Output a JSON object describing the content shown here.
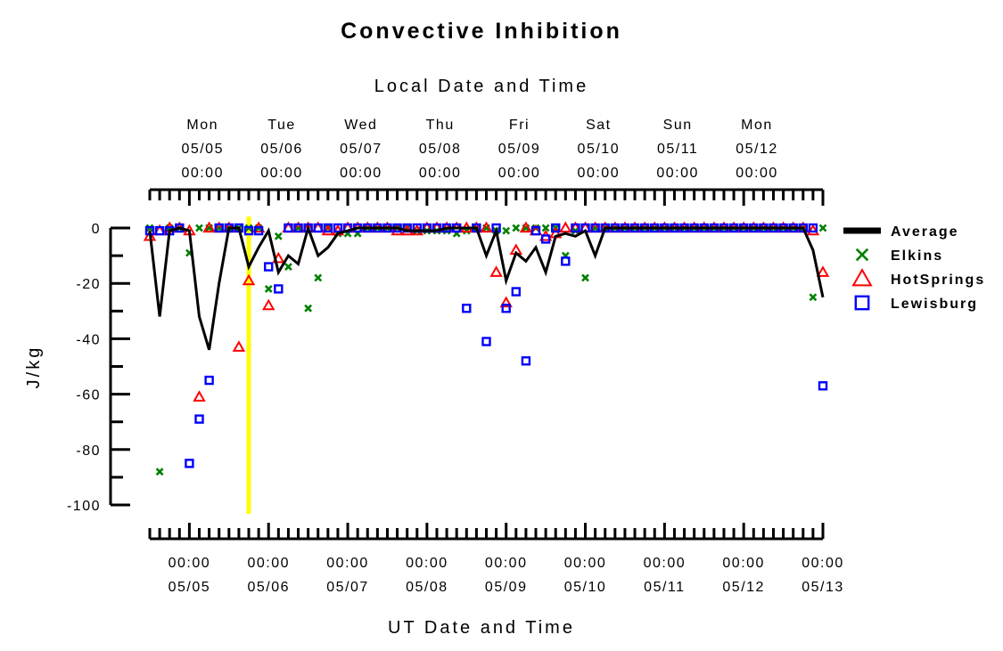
{
  "chart_data": {
    "type": "scatter",
    "title": "Convective Inhibition",
    "top_xlabel": "Local Date and Time",
    "xlabel": "UT Date and Time",
    "ylabel": "J/kg",
    "ylim": [
      -100,
      0
    ],
    "yticks": [
      0,
      -20,
      -40,
      -60,
      -80,
      -100
    ],
    "xlim": [
      "05/04 12:00",
      "05/13 00:00"
    ],
    "local_utc_offset_hours": -4,
    "top_ticks": [
      {
        "day": "Mon",
        "date": "05/05",
        "time": "00:00"
      },
      {
        "day": "Tue",
        "date": "05/06",
        "time": "00:00"
      },
      {
        "day": "Wed",
        "date": "05/07",
        "time": "00:00"
      },
      {
        "day": "Thu",
        "date": "05/08",
        "time": "00:00"
      },
      {
        "day": "Fri",
        "date": "05/09",
        "time": "00:00"
      },
      {
        "day": "Sat",
        "date": "05/10",
        "time": "00:00"
      },
      {
        "day": "Sun",
        "date": "05/11",
        "time": "00:00"
      },
      {
        "day": "Mon",
        "date": "05/12",
        "time": "00:00"
      }
    ],
    "bottom_ticks": [
      {
        "time": "00:00",
        "date": "05/05"
      },
      {
        "time": "00:00",
        "date": "05/06"
      },
      {
        "time": "00:00",
        "date": "05/07"
      },
      {
        "time": "00:00",
        "date": "05/08"
      },
      {
        "time": "00:00",
        "date": "05/09"
      },
      {
        "time": "00:00",
        "date": "05/10"
      },
      {
        "time": "00:00",
        "date": "05/11"
      },
      {
        "time": "00:00",
        "date": "05/12"
      },
      {
        "time": "00:00",
        "date": "05/13"
      }
    ],
    "current_time_marker": {
      "utc": "05/05 18:00",
      "color": "#ffff00"
    },
    "legend_position": "right",
    "series": [
      {
        "name": "Average",
        "type": "line",
        "color": "#000000",
        "x": [
          "05/04 12:00",
          "05/04 15:00",
          "05/04 18:00",
          "05/04 21:00",
          "05/05 00:00",
          "05/05 03:00",
          "05/05 06:00",
          "05/05 09:00",
          "05/05 12:00",
          "05/05 15:00",
          "05/05 18:00",
          "05/05 21:00",
          "05/06 00:00",
          "05/06 03:00",
          "05/06 06:00",
          "05/06 09:00",
          "05/06 12:00",
          "05/06 15:00",
          "05/06 18:00",
          "05/06 21:00",
          "05/07 00:00",
          "05/07 03:00",
          "05/07 06:00",
          "05/07 09:00",
          "05/07 12:00",
          "05/07 15:00",
          "05/07 18:00",
          "05/07 21:00",
          "05/08 00:00",
          "05/08 03:00",
          "05/08 06:00",
          "05/08 09:00",
          "05/08 12:00",
          "05/08 15:00",
          "05/08 18:00",
          "05/08 21:00",
          "05/09 00:00",
          "05/09 03:00",
          "05/09 06:00",
          "05/09 09:00",
          "05/09 12:00",
          "05/09 15:00",
          "05/09 18:00",
          "05/09 21:00",
          "05/10 00:00",
          "05/10 03:00",
          "05/10 06:00",
          "05/10 09:00",
          "05/10 12:00",
          "05/10 15:00",
          "05/10 18:00",
          "05/10 21:00",
          "05/11 00:00",
          "05/11 03:00",
          "05/11 06:00",
          "05/11 09:00",
          "05/11 12:00",
          "05/11 15:00",
          "05/11 18:00",
          "05/11 21:00",
          "05/12 00:00",
          "05/12 03:00",
          "05/12 06:00",
          "05/12 09:00",
          "05/12 12:00",
          "05/12 15:00",
          "05/12 18:00",
          "05/12 21:00",
          "05/13 00:00"
        ],
        "y": [
          -1,
          -32,
          -1,
          0,
          -1,
          -32,
          -44,
          -20,
          0,
          0,
          -14,
          -7,
          -1,
          -16,
          -10,
          -13,
          0,
          -10,
          -7,
          -2,
          -1,
          0,
          0,
          0,
          0,
          0,
          -1,
          -1,
          -1,
          -1,
          0,
          0,
          0,
          0,
          -10,
          -1,
          -19,
          -9,
          -12,
          -7,
          -16,
          -3,
          -2,
          -3,
          -1,
          -10,
          0,
          0,
          0,
          0,
          0,
          0,
          0,
          0,
          0,
          0,
          0,
          0,
          0,
          0,
          0,
          0,
          0,
          0,
          0,
          0,
          0,
          -8,
          -25
        ]
      },
      {
        "name": "Elkins",
        "type": "scatter",
        "marker": "x",
        "color": "#008000",
        "x": [
          "05/04 12:00",
          "05/04 15:00",
          "05/04 18:00",
          "05/04 21:00",
          "05/05 00:00",
          "05/05 03:00",
          "05/05 06:00",
          "05/05 09:00",
          "05/05 12:00",
          "05/05 15:00",
          "05/05 18:00",
          "05/05 21:00",
          "05/06 00:00",
          "05/06 03:00",
          "05/06 06:00",
          "05/06 09:00",
          "05/06 12:00",
          "05/06 15:00",
          "05/06 18:00",
          "05/06 21:00",
          "05/07 00:00",
          "05/07 03:00",
          "05/07 06:00",
          "05/07 09:00",
          "05/07 12:00",
          "05/07 15:00",
          "05/07 18:00",
          "05/07 21:00",
          "05/08 00:00",
          "05/08 03:00",
          "05/08 06:00",
          "05/08 09:00",
          "05/08 12:00",
          "05/08 15:00",
          "05/08 18:00",
          "05/08 21:00",
          "05/09 00:00",
          "05/09 03:00",
          "05/09 06:00",
          "05/09 09:00",
          "05/09 12:00",
          "05/09 15:00",
          "05/09 18:00",
          "05/09 21:00",
          "05/10 00:00",
          "05/10 03:00",
          "05/10 06:00",
          "05/10 09:00",
          "05/10 12:00",
          "05/10 15:00",
          "05/10 18:00",
          "05/10 21:00",
          "05/11 00:00",
          "05/11 03:00",
          "05/11 06:00",
          "05/11 09:00",
          "05/11 12:00",
          "05/11 15:00",
          "05/11 18:00",
          "05/11 21:00",
          "05/12 00:00",
          "05/12 03:00",
          "05/12 06:00",
          "05/12 09:00",
          "05/12 12:00",
          "05/12 15:00",
          "05/12 18:00",
          "05/12 21:00",
          "05/13 00:00"
        ],
        "y": [
          0,
          -88,
          0,
          0,
          -9,
          0,
          0,
          0,
          0,
          0,
          0,
          0,
          -22,
          -3,
          -14,
          0,
          -29,
          -18,
          0,
          -2,
          -2,
          -2,
          0,
          0,
          0,
          0,
          0,
          -1,
          -1,
          -1,
          -1,
          -2,
          -1,
          0,
          0,
          -1,
          -1,
          0,
          0,
          0,
          0,
          0,
          -10,
          -1,
          -18,
          0,
          0,
          0,
          0,
          0,
          0,
          0,
          0,
          0,
          0,
          0,
          0,
          0,
          0,
          0,
          0,
          0,
          0,
          0,
          0,
          0,
          0,
          -25,
          0
        ]
      },
      {
        "name": "HotSprings",
        "type": "scatter",
        "marker": "triangle",
        "color": "#ff0000",
        "x": [
          "05/04 12:00",
          "05/04 15:00",
          "05/04 18:00",
          "05/04 21:00",
          "05/05 00:00",
          "05/05 03:00",
          "05/05 06:00",
          "05/05 09:00",
          "05/05 12:00",
          "05/05 15:00",
          "05/05 18:00",
          "05/05 21:00",
          "05/06 00:00",
          "05/06 03:00",
          "05/06 06:00",
          "05/06 09:00",
          "05/06 12:00",
          "05/06 15:00",
          "05/06 18:00",
          "05/06 21:00",
          "05/07 00:00",
          "05/07 03:00",
          "05/07 06:00",
          "05/07 09:00",
          "05/07 12:00",
          "05/07 15:00",
          "05/07 18:00",
          "05/07 21:00",
          "05/08 00:00",
          "05/08 03:00",
          "05/08 06:00",
          "05/08 09:00",
          "05/08 12:00",
          "05/08 15:00",
          "05/08 18:00",
          "05/08 21:00",
          "05/09 00:00",
          "05/09 03:00",
          "05/09 06:00",
          "05/09 09:00",
          "05/09 12:00",
          "05/09 15:00",
          "05/09 18:00",
          "05/09 21:00",
          "05/10 00:00",
          "05/10 03:00",
          "05/10 06:00",
          "05/10 09:00",
          "05/10 12:00",
          "05/10 15:00",
          "05/10 18:00",
          "05/10 21:00",
          "05/11 00:00",
          "05/11 03:00",
          "05/11 06:00",
          "05/11 09:00",
          "05/11 12:00",
          "05/11 15:00",
          "05/11 18:00",
          "05/11 21:00",
          "05/12 00:00",
          "05/12 03:00",
          "05/12 06:00",
          "05/12 09:00",
          "05/12 12:00",
          "05/12 15:00",
          "05/12 18:00",
          "05/12 21:00",
          "05/13 00:00"
        ],
        "y": [
          -3,
          -1,
          0,
          0,
          -1,
          -61,
          0,
          0,
          0,
          -43,
          -19,
          0,
          -28,
          -11,
          0,
          0,
          0,
          0,
          -1,
          -1,
          0,
          0,
          0,
          0,
          0,
          -1,
          -1,
          -1,
          0,
          0,
          0,
          0,
          0,
          0,
          0,
          -16,
          -27,
          -8,
          0,
          -1,
          -3,
          -2,
          0,
          0,
          0,
          0,
          0,
          0,
          0,
          0,
          0,
          0,
          0,
          0,
          0,
          0,
          0,
          0,
          0,
          0,
          0,
          0,
          0,
          0,
          0,
          0,
          0,
          -1,
          -16
        ]
      },
      {
        "name": "Lewisburg",
        "type": "scatter",
        "marker": "square",
        "color": "#0000ff",
        "x": [
          "05/04 12:00",
          "05/04 15:00",
          "05/04 18:00",
          "05/04 21:00",
          "05/05 00:00",
          "05/05 03:00",
          "05/05 06:00",
          "05/05 09:00",
          "05/05 12:00",
          "05/05 15:00",
          "05/05 18:00",
          "05/05 21:00",
          "05/06 00:00",
          "05/06 03:00",
          "05/06 06:00",
          "05/06 09:00",
          "05/06 12:00",
          "05/06 15:00",
          "05/06 18:00",
          "05/06 21:00",
          "05/07 00:00",
          "05/07 03:00",
          "05/07 06:00",
          "05/07 09:00",
          "05/07 12:00",
          "05/07 15:00",
          "05/07 18:00",
          "05/07 21:00",
          "05/08 00:00",
          "05/08 03:00",
          "05/08 06:00",
          "05/08 09:00",
          "05/08 12:00",
          "05/08 15:00",
          "05/08 18:00",
          "05/08 21:00",
          "05/09 00:00",
          "05/09 03:00",
          "05/09 06:00",
          "05/09 09:00",
          "05/09 12:00",
          "05/09 15:00",
          "05/09 18:00",
          "05/09 21:00",
          "05/10 00:00",
          "05/10 03:00",
          "05/10 06:00",
          "05/10 09:00",
          "05/10 12:00",
          "05/10 15:00",
          "05/10 18:00",
          "05/10 21:00",
          "05/11 00:00",
          "05/11 03:00",
          "05/11 06:00",
          "05/11 09:00",
          "05/11 12:00",
          "05/11 15:00",
          "05/11 18:00",
          "05/11 21:00",
          "05/12 00:00",
          "05/12 03:00",
          "05/12 06:00",
          "05/12 09:00",
          "05/12 12:00",
          "05/12 15:00",
          "05/12 18:00",
          "05/12 21:00",
          "05/13 00:00"
        ],
        "y": [
          -1,
          -1,
          -1,
          0,
          -85,
          -69,
          -55,
          0,
          0,
          0,
          -1,
          -1,
          -14,
          -22,
          0,
          0,
          0,
          0,
          0,
          0,
          0,
          0,
          0,
          0,
          0,
          0,
          0,
          0,
          0,
          0,
          0,
          0,
          -29,
          0,
          -41,
          0,
          -29,
          -23,
          -48,
          -1,
          -4,
          0,
          -12,
          0,
          0,
          0,
          0,
          0,
          0,
          0,
          0,
          0,
          0,
          0,
          0,
          0,
          0,
          0,
          0,
          0,
          0,
          0,
          0,
          0,
          0,
          0,
          0,
          0,
          -57
        ]
      }
    ]
  }
}
